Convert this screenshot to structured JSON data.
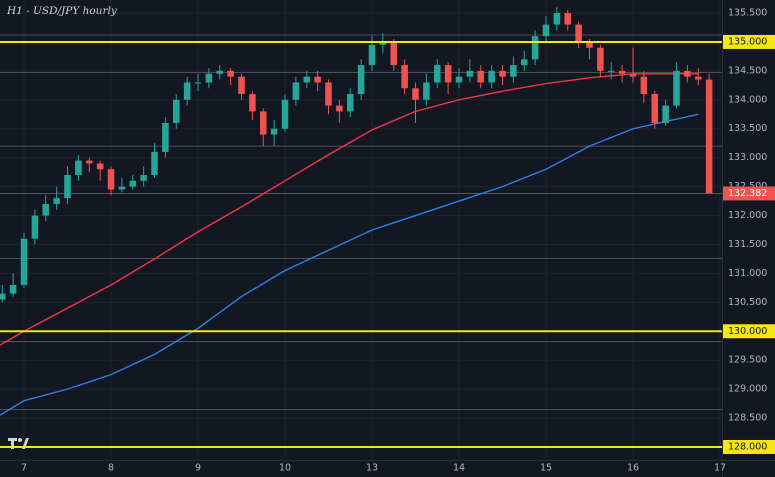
{
  "chart_data": {
    "type": "candlestick",
    "title": "H1 - USD/JPY hourly",
    "x": [
      -0.25,
      -0.125,
      0,
      0.125,
      0.25,
      0.375,
      0.5,
      0.625,
      0.75,
      0.875,
      1,
      1.125,
      1.25,
      1.375,
      1.5,
      1.625,
      1.75,
      1.875,
      2,
      2.125,
      2.25,
      2.375,
      2.5,
      2.625,
      2.75,
      2.875,
      3,
      3.125,
      3.25,
      3.375,
      3.5,
      3.625,
      3.75,
      3.875,
      4,
      4.125,
      4.25,
      4.375,
      4.5,
      4.625,
      4.75,
      4.875,
      5,
      5.125,
      5.25,
      5.375,
      5.5,
      5.625,
      5.75,
      5.875,
      6,
      6.125,
      6.25,
      6.375,
      6.5,
      6.625,
      6.75,
      6.875,
      7,
      7.125,
      7.25,
      7.375,
      7.5,
      7.625,
      7.75,
      7.875
    ],
    "open": [
      130.55,
      130.65,
      130.8,
      131.6,
      132.0,
      132.2,
      132.3,
      132.7,
      132.95,
      132.9,
      132.8,
      132.45,
      132.5,
      132.6,
      132.7,
      133.1,
      133.6,
      134.0,
      134.3,
      134.3,
      134.45,
      134.5,
      134.4,
      134.1,
      133.8,
      133.4,
      133.5,
      134.0,
      134.3,
      134.4,
      134.3,
      133.9,
      133.8,
      134.1,
      134.6,
      134.95,
      135.0,
      134.6,
      134.2,
      134.0,
      134.3,
      134.6,
      134.3,
      134.4,
      134.5,
      134.3,
      134.5,
      134.4,
      134.6,
      134.7,
      135.1,
      135.3,
      135.5,
      135.3,
      135.0,
      134.9,
      134.5,
      134.5,
      134.45,
      134.4,
      134.1,
      133.6,
      133.9,
      134.5,
      134.4,
      134.35
    ],
    "high": [
      130.8,
      131.0,
      131.7,
      132.1,
      132.35,
      132.5,
      132.85,
      133.05,
      133.0,
      132.95,
      132.85,
      132.65,
      132.7,
      132.85,
      133.25,
      133.7,
      134.1,
      134.4,
      134.45,
      134.55,
      134.6,
      134.55,
      134.45,
      134.15,
      133.85,
      133.65,
      134.1,
      134.4,
      134.5,
      134.5,
      134.35,
      134.0,
      134.2,
      134.7,
      135.1,
      135.15,
      135.05,
      134.7,
      134.3,
      134.45,
      134.7,
      134.65,
      134.55,
      134.7,
      134.6,
      134.6,
      134.6,
      134.75,
      134.85,
      135.2,
      135.45,
      135.6,
      135.55,
      135.35,
      135.05,
      134.95,
      134.65,
      134.6,
      134.9,
      134.5,
      134.15,
      134.0,
      134.65,
      134.6,
      134.55,
      134.45
    ],
    "low": [
      130.5,
      130.6,
      130.75,
      131.5,
      131.9,
      132.1,
      132.2,
      132.6,
      132.75,
      132.6,
      132.35,
      132.4,
      132.45,
      132.5,
      132.65,
      133.0,
      133.5,
      133.9,
      134.15,
      134.2,
      134.35,
      134.25,
      134.0,
      133.65,
      133.2,
      133.2,
      133.45,
      133.9,
      134.2,
      134.15,
      133.75,
      133.6,
      133.7,
      134.0,
      134.5,
      134.8,
      134.5,
      134.1,
      133.6,
      133.9,
      134.2,
      134.1,
      134.2,
      134.3,
      134.2,
      134.2,
      134.25,
      134.3,
      134.5,
      134.6,
      135.0,
      135.2,
      135.2,
      134.9,
      134.7,
      134.4,
      134.35,
      134.3,
      134.3,
      133.95,
      133.5,
      133.55,
      133.85,
      134.3,
      134.25,
      132.382
    ],
    "close": [
      130.65,
      130.8,
      131.6,
      132.0,
      132.2,
      132.3,
      132.7,
      132.95,
      132.9,
      132.8,
      132.45,
      132.5,
      132.6,
      132.7,
      133.1,
      133.6,
      134.0,
      134.3,
      134.3,
      134.45,
      134.5,
      134.4,
      134.1,
      133.8,
      133.4,
      133.5,
      134.0,
      134.3,
      134.4,
      134.3,
      133.9,
      133.8,
      134.1,
      134.6,
      134.95,
      135.0,
      134.6,
      134.2,
      134.0,
      134.3,
      134.6,
      134.3,
      134.4,
      134.5,
      134.3,
      134.5,
      134.4,
      134.6,
      134.7,
      135.1,
      135.3,
      135.5,
      135.3,
      135.0,
      134.9,
      134.5,
      134.5,
      134.45,
      134.4,
      134.1,
      133.6,
      133.9,
      134.5,
      134.4,
      134.35,
      132.382
    ],
    "last_value_label": "132.382",
    "up_color": "#26a69a",
    "down_color": "#ef5350",
    "moving_averages": [
      {
        "color": "#f23645",
        "x": [
          -0.276,
          0,
          0.5,
          1,
          1.5,
          2,
          2.5,
          3,
          3.5,
          4,
          4.5,
          5,
          5.5,
          6,
          6.5,
          7,
          7.75
        ],
        "values": [
          129.76,
          130.0,
          130.4,
          130.8,
          131.25,
          131.72,
          132.15,
          132.6,
          133.05,
          133.48,
          133.8,
          134.0,
          134.15,
          134.28,
          134.38,
          134.45,
          134.45
        ]
      },
      {
        "color": "#2f7fe8",
        "x": [
          -0.276,
          0,
          0.5,
          1,
          1.5,
          2,
          2.5,
          3,
          3.5,
          4,
          4.5,
          5,
          5.5,
          6,
          6.5,
          7,
          7.75
        ],
        "values": [
          128.55,
          128.8,
          129.0,
          129.25,
          129.6,
          130.05,
          130.6,
          131.05,
          131.4,
          131.75,
          132.0,
          132.25,
          132.5,
          132.8,
          133.2,
          133.5,
          133.75
        ]
      }
    ],
    "levels": [
      135.12,
      134.47,
      133.2,
      132.38,
      131.26,
      129.82,
      128.65
    ],
    "key_levels": [
      {
        "value": 135,
        "label": "135.000"
      },
      {
        "value": 130,
        "label": "130.000"
      },
      {
        "value": 128,
        "label": "128.000"
      }
    ],
    "key_level_color": "#f5e614",
    "xlim": [
      -0.276,
      8.023
    ],
    "xticks": [
      {
        "value": 0,
        "label": "7"
      },
      {
        "value": 1,
        "label": "8"
      },
      {
        "value": 2,
        "label": "9"
      },
      {
        "value": 3,
        "label": "10"
      },
      {
        "value": 4,
        "label": "13"
      },
      {
        "value": 5,
        "label": "14"
      },
      {
        "value": 6,
        "label": "15"
      },
      {
        "value": 7,
        "label": "16"
      },
      {
        "value": 8,
        "label": "17"
      }
    ],
    "ylim": [
      127.775,
      135.725
    ],
    "yticks": [
      {
        "value": 128,
        "label": "128.000"
      },
      {
        "value": 128.5,
        "label": "128.500"
      },
      {
        "value": 129,
        "label": "129.000"
      },
      {
        "value": 129.5,
        "label": "129.500"
      },
      {
        "value": 130,
        "label": "130.000"
      },
      {
        "value": 130.5,
        "label": "130.500"
      },
      {
        "value": 131,
        "label": "131.000"
      },
      {
        "value": 131.5,
        "label": "131.500"
      },
      {
        "value": 132,
        "label": "132.000"
      },
      {
        "value": 132.5,
        "label": "132.500"
      },
      {
        "value": 133,
        "label": "133.000"
      },
      {
        "value": 133.5,
        "label": "133.500"
      },
      {
        "value": 134,
        "label": "134.000"
      },
      {
        "value": 134.5,
        "label": "134.500"
      },
      {
        "value": 135,
        "label": "135.000"
      },
      {
        "value": 135.5,
        "label": "135.500"
      }
    ],
    "grid": true
  }
}
